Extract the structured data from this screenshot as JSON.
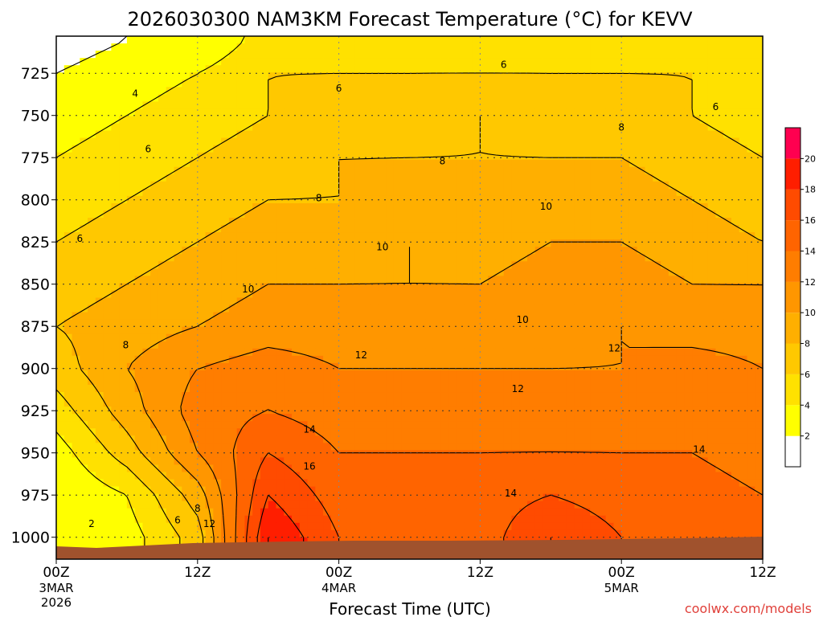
{
  "chart_data": {
    "type": "heatmap",
    "title": "2026030300 NAM3KM Forecast Temperature (°C) for KEVV",
    "xlabel": "Forecast Time (UTC)",
    "credit": "coolwx.com/models",
    "x_ticks": [
      {
        "hour": 0,
        "label": "00Z",
        "sub1": "3MAR",
        "sub2": "2026"
      },
      {
        "hour": 12,
        "label": "12Z",
        "sub1": "",
        "sub2": ""
      },
      {
        "hour": 24,
        "label": "00Z",
        "sub1": "4MAR",
        "sub2": ""
      },
      {
        "hour": 36,
        "label": "12Z",
        "sub1": "",
        "sub2": ""
      },
      {
        "hour": 48,
        "label": "00Z",
        "sub1": "5MAR",
        "sub2": ""
      },
      {
        "hour": 60,
        "label": "12Z",
        "sub1": "",
        "sub2": ""
      }
    ],
    "x_range_hours": [
      0,
      60
    ],
    "y_label_levels": [
      "725",
      "750",
      "775",
      "800",
      "825",
      "850",
      "875",
      "900",
      "925",
      "950",
      "975",
      "1000"
    ],
    "y_range_hpa": [
      703,
      1013
    ],
    "pressure_levels_hpa": [
      705,
      725,
      750,
      775,
      800,
      825,
      850,
      875,
      900,
      925,
      950,
      975,
      1000,
      1012
    ],
    "hours": [
      0,
      6,
      12,
      18,
      24,
      30,
      36,
      42,
      48,
      54,
      60
    ],
    "temperature_c": [
      [
        1,
        2,
        2,
        5,
        5,
        5,
        5,
        5,
        5,
        5,
        4
      ],
      [
        2,
        3,
        4,
        6,
        6,
        6,
        6,
        6,
        6,
        6,
        5
      ],
      [
        3,
        4,
        5,
        6,
        7,
        7,
        8,
        7,
        7,
        6,
        5
      ],
      [
        4,
        5,
        6,
        7,
        8,
        8,
        8,
        8,
        8,
        7,
        6
      ],
      [
        5,
        6,
        7,
        8,
        8,
        9,
        9,
        9,
        9,
        8,
        7
      ],
      [
        6,
        7,
        8,
        9,
        9,
        10,
        9,
        10,
        10,
        9,
        8
      ],
      [
        7,
        8,
        9,
        10,
        10,
        10,
        10,
        11,
        11,
        10,
        10
      ],
      [
        8,
        9,
        10,
        11,
        11,
        11,
        11,
        11,
        12,
        11,
        11
      ],
      [
        7,
        10,
        12,
        13,
        12,
        12,
        12,
        12,
        12,
        13,
        12
      ],
      [
        5,
        9,
        13,
        14,
        13,
        13,
        13,
        13,
        13,
        13,
        13
      ],
      [
        3,
        7,
        12,
        16,
        14,
        14,
        14,
        14,
        14,
        14,
        13
      ],
      [
        2,
        4,
        9,
        18,
        15,
        15,
        15,
        16,
        15,
        15,
        14
      ],
      [
        2,
        3,
        7,
        20,
        16,
        15,
        15,
        18,
        16,
        15,
        15
      ],
      [
        2,
        3,
        7,
        20,
        16,
        15,
        15,
        18,
        16,
        15,
        15
      ]
    ],
    "contour_levels": [
      2,
      4,
      6,
      8,
      10,
      12,
      14,
      16,
      18,
      20
    ],
    "contour_labels": [
      {
        "text": "2",
        "hour": 3.0,
        "hpa": 992
      },
      {
        "text": "4",
        "hour": 6.7,
        "hpa": 737
      },
      {
        "text": "6",
        "hour": 7.8,
        "hpa": 770
      },
      {
        "text": "6",
        "hour": 2.0,
        "hpa": 823
      },
      {
        "text": "6",
        "hour": 10.3,
        "hpa": 990
      },
      {
        "text": "6",
        "hour": 24.0,
        "hpa": 734
      },
      {
        "text": "6",
        "hour": 38.0,
        "hpa": 720
      },
      {
        "text": "6",
        "hour": 56.0,
        "hpa": 745
      },
      {
        "text": "8",
        "hour": 5.9,
        "hpa": 886
      },
      {
        "text": "8",
        "hour": 12.0,
        "hpa": 983
      },
      {
        "text": "8",
        "hour": 22.3,
        "hpa": 799
      },
      {
        "text": "8",
        "hour": 32.8,
        "hpa": 777
      },
      {
        "text": "8",
        "hour": 48.0,
        "hpa": 757
      },
      {
        "text": "10",
        "hour": 16.3,
        "hpa": 853
      },
      {
        "text": "10",
        "hour": 27.7,
        "hpa": 828
      },
      {
        "text": "10",
        "hour": 39.6,
        "hpa": 871
      },
      {
        "text": "10",
        "hour": 41.6,
        "hpa": 804
      },
      {
        "text": "12",
        "hour": 13.0,
        "hpa": 992
      },
      {
        "text": "12",
        "hour": 25.9,
        "hpa": 892
      },
      {
        "text": "12",
        "hour": 39.2,
        "hpa": 912
      },
      {
        "text": "12",
        "hour": 47.4,
        "hpa": 888
      },
      {
        "text": "14",
        "hour": 21.5,
        "hpa": 936
      },
      {
        "text": "14",
        "hour": 38.6,
        "hpa": 974
      },
      {
        "text": "14",
        "hour": 54.6,
        "hpa": 948
      },
      {
        "text": "16",
        "hour": 21.5,
        "hpa": 958
      }
    ],
    "colorbar": {
      "ticks": [
        "2",
        "4",
        "6",
        "8",
        "10",
        "12",
        "14",
        "16",
        "18",
        "20"
      ],
      "bins": [
        {
          "min": 0,
          "max": 2,
          "color": "#ffffff"
        },
        {
          "min": 2,
          "max": 4,
          "color": "#ffff00"
        },
        {
          "min": 4,
          "max": 6,
          "color": "#ffe100"
        },
        {
          "min": 6,
          "max": 8,
          "color": "#ffc800"
        },
        {
          "min": 8,
          "max": 10,
          "color": "#ffaf00"
        },
        {
          "min": 10,
          "max": 12,
          "color": "#ff9600"
        },
        {
          "min": 12,
          "max": 14,
          "color": "#ff7d00"
        },
        {
          "min": 14,
          "max": 16,
          "color": "#ff6400"
        },
        {
          "min": 16,
          "max": 18,
          "color": "#ff4b00"
        },
        {
          "min": 18,
          "max": 20,
          "color": "#ff1e00"
        },
        {
          "min": 20,
          "max": 22,
          "color": "#ff0050"
        }
      ]
    },
    "ground_color": "#a0522d",
    "gridlines": true
  }
}
